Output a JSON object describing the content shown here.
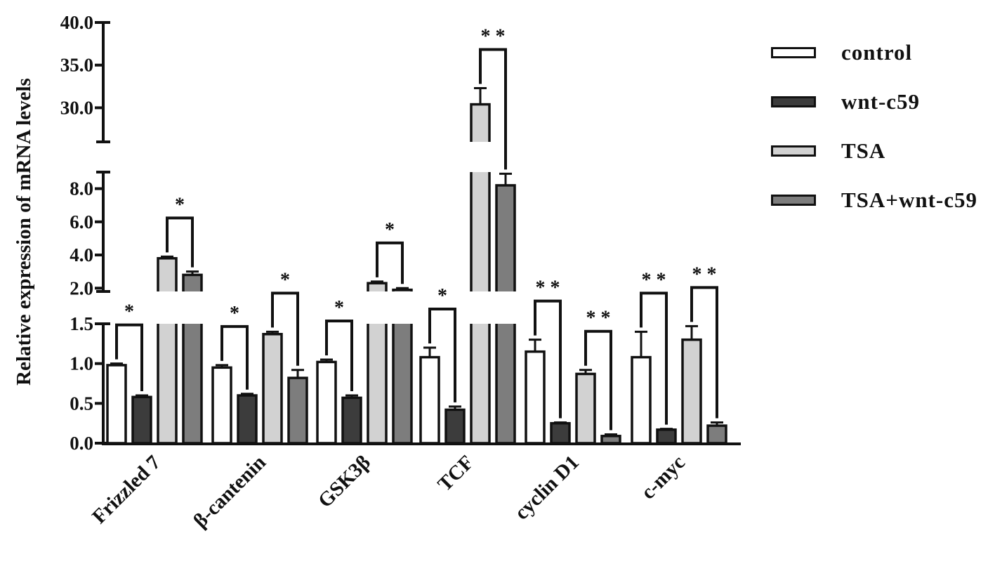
{
  "chart_data": {
    "type": "bar",
    "ylabel": "Relative expression of mRNA levels",
    "categories": [
      "Frizzled 7",
      "β-cantenin",
      "GSK3β",
      "TCF",
      "cyclin D1",
      "c-myc"
    ],
    "series": [
      {
        "name": "control",
        "color": "#ffffff",
        "values": [
          0.98,
          0.95,
          1.02,
          1.08,
          1.15,
          1.08
        ],
        "errors": [
          0.02,
          0.03,
          0.03,
          0.12,
          0.15,
          0.32
        ]
      },
      {
        "name": "wnt-c59",
        "color": "#3c3c3c",
        "values": [
          0.58,
          0.6,
          0.57,
          0.42,
          0.25,
          0.17
        ],
        "errors": [
          0.02,
          0.02,
          0.03,
          0.04,
          0.01,
          0.01
        ]
      },
      {
        "name": "TSA",
        "color": "#d2d2d2",
        "values": [
          3.8,
          1.37,
          2.3,
          30.4,
          0.87,
          1.3
        ],
        "errors": [
          0.1,
          0.03,
          0.1,
          1.9,
          0.05,
          0.17
        ]
      },
      {
        "name": "TSA+wnt-c59",
        "color": "#7d7d7d",
        "values": [
          2.8,
          0.82,
          1.9,
          8.2,
          0.09,
          0.22
        ],
        "errors": [
          0.2,
          0.1,
          0.1,
          0.7,
          0.02,
          0.04
        ]
      }
    ],
    "y_axis_segments": [
      {
        "range": [
          0,
          1.5
        ],
        "ticks": [
          "0.0",
          "0.5",
          "1.0",
          "1.5"
        ]
      },
      {
        "range": [
          1.8,
          9
        ],
        "ticks": [
          "2.0",
          "4.0",
          "6.0",
          "8.0"
        ]
      },
      {
        "range": [
          26,
          40
        ],
        "ticks": [
          "30.0",
          "35.0",
          "40.0"
        ]
      }
    ],
    "significance": [
      {
        "category": "Frizzled 7",
        "pair": [
          0,
          1
        ],
        "label": "*"
      },
      {
        "category": "Frizzled 7",
        "pair": [
          2,
          3
        ],
        "label": "*"
      },
      {
        "category": "β-cantenin",
        "pair": [
          0,
          1
        ],
        "label": "*"
      },
      {
        "category": "β-cantenin",
        "pair": [
          2,
          3
        ],
        "label": "*"
      },
      {
        "category": "GSK3β",
        "pair": [
          0,
          1
        ],
        "label": "*"
      },
      {
        "category": "GSK3β",
        "pair": [
          2,
          3
        ],
        "label": "*"
      },
      {
        "category": "TCF",
        "pair": [
          0,
          1
        ],
        "label": "*"
      },
      {
        "category": "TCF",
        "pair": [
          2,
          3
        ],
        "label": "* *"
      },
      {
        "category": "cyclin D1",
        "pair": [
          0,
          1
        ],
        "label": "* *"
      },
      {
        "category": "cyclin D1",
        "pair": [
          2,
          3
        ],
        "label": "* *"
      },
      {
        "category": "c-myc",
        "pair": [
          0,
          1
        ],
        "label": "* *"
      },
      {
        "category": "c-myc",
        "pair": [
          2,
          3
        ],
        "label": "* *"
      }
    ],
    "grid": false,
    "legend_position": "top-right"
  }
}
